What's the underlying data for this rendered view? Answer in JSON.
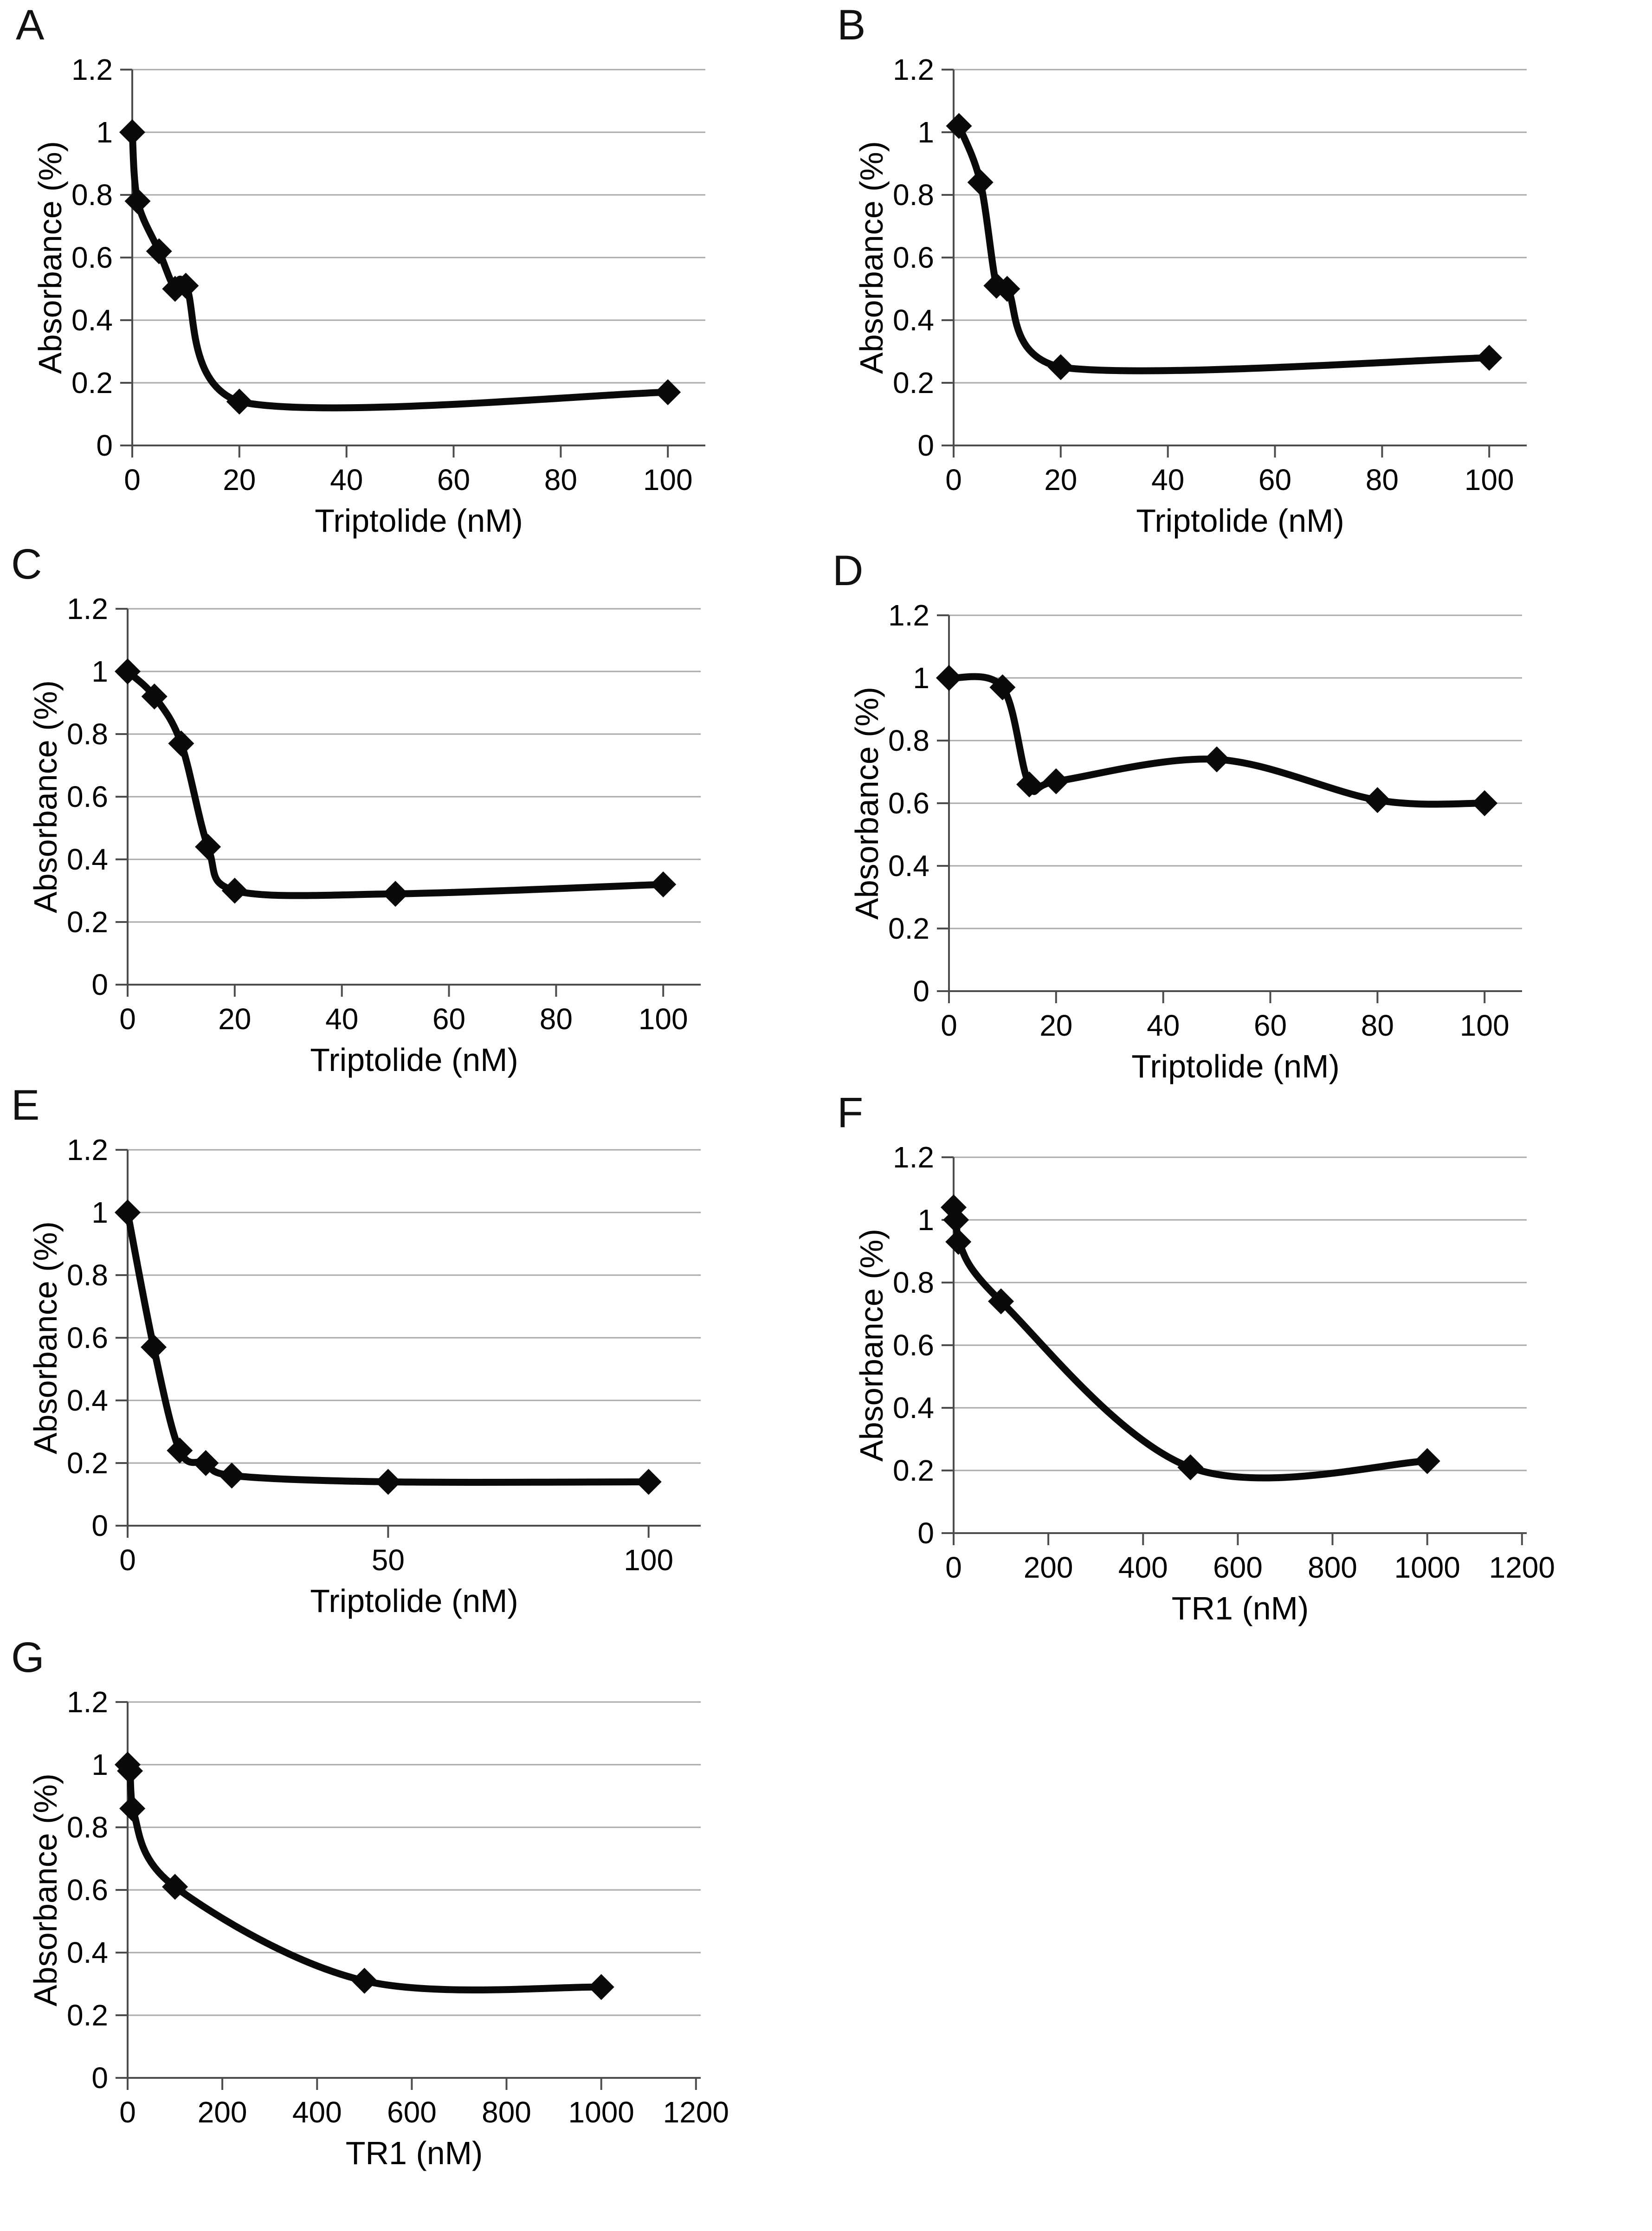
{
  "figure": {
    "background_color": "#ffffff",
    "line_color": "#0a0a0a",
    "marker_color": "#0a0a0a",
    "grid_color": "#a9a9a9",
    "axis_color": "#4d4d4d",
    "text_color": "#000000",
    "marker_shape": "diamond"
  },
  "chart_data": [
    {
      "type": "line",
      "letter": "A",
      "xlabel": "Triptolide (nM)",
      "ylabel": "Absorbance (%)",
      "xlim": [
        0,
        107
      ],
      "ylim": [
        0,
        1.2
      ],
      "grid": true,
      "legend": false,
      "xticks": [
        0,
        20,
        40,
        60,
        80,
        100
      ],
      "xtick_labels": [
        "0",
        "20",
        "40",
        "60",
        "80",
        "100"
      ],
      "yticks": [
        0,
        0.2,
        0.4,
        0.6,
        0.8,
        1,
        1.2
      ],
      "ytick_labels": [
        "0",
        "0.2",
        "0.4",
        "0.6",
        "0.8",
        "1",
        "1.2"
      ],
      "series": [
        {
          "x": [
            0,
            1,
            5,
            8,
            10,
            20,
            100
          ],
          "y": [
            1.0,
            0.78,
            0.62,
            0.5,
            0.51,
            0.14,
            0.17
          ]
        }
      ]
    },
    {
      "type": "line",
      "letter": "B",
      "xlabel": "Triptolide (nM)",
      "ylabel": "Absorbance (%)",
      "xlim": [
        0,
        107
      ],
      "ylim": [
        0,
        1.2
      ],
      "grid": true,
      "legend": false,
      "xticks": [
        0,
        20,
        40,
        60,
        80,
        100
      ],
      "xtick_labels": [
        "0",
        "20",
        "40",
        "60",
        "80",
        "100"
      ],
      "yticks": [
        0,
        0.2,
        0.4,
        0.6,
        0.8,
        1,
        1.2
      ],
      "ytick_labels": [
        "0",
        "0.2",
        "0.4",
        "0.6",
        "0.8",
        "1",
        "1.2"
      ],
      "series": [
        {
          "x": [
            1,
            5,
            8,
            10,
            20,
            100
          ],
          "y": [
            1.02,
            0.84,
            0.51,
            0.5,
            0.25,
            0.28
          ]
        }
      ]
    },
    {
      "type": "line",
      "letter": "C",
      "xlabel": "Triptolide (nM)",
      "ylabel": "Absorbance (%)",
      "xlim": [
        0,
        107
      ],
      "ylim": [
        0,
        1.2
      ],
      "grid": true,
      "legend": false,
      "xticks": [
        0,
        20,
        40,
        60,
        80,
        100
      ],
      "xtick_labels": [
        "0",
        "20",
        "40",
        "60",
        "80",
        "100"
      ],
      "yticks": [
        0,
        0.2,
        0.4,
        0.6,
        0.8,
        1,
        1.2
      ],
      "ytick_labels": [
        "0",
        "0.2",
        "0.4",
        "0.6",
        "0.8",
        "1",
        "1.2"
      ],
      "series": [
        {
          "x": [
            0,
            5,
            10,
            15,
            20,
            50,
            100
          ],
          "y": [
            1.0,
            0.92,
            0.77,
            0.44,
            0.3,
            0.29,
            0.32
          ]
        }
      ]
    },
    {
      "type": "line",
      "letter": "D",
      "xlabel": "Triptolide (nM)",
      "ylabel": "Absorbance (%)",
      "xlim": [
        0,
        107
      ],
      "ylim": [
        0,
        1.2
      ],
      "grid": true,
      "legend": false,
      "xticks": [
        0,
        20,
        40,
        60,
        80,
        100
      ],
      "xtick_labels": [
        "0",
        "20",
        "40",
        "60",
        "80",
        "100"
      ],
      "yticks": [
        0,
        0.2,
        0.4,
        0.6,
        0.8,
        1,
        1.2
      ],
      "ytick_labels": [
        "0",
        "0.2",
        "0.4",
        "0.6",
        "0.8",
        "1",
        "1.2"
      ],
      "series": [
        {
          "x": [
            0,
            10,
            15,
            20,
            50,
            80,
            100
          ],
          "y": [
            1.0,
            0.97,
            0.66,
            0.67,
            0.74,
            0.61,
            0.6
          ]
        }
      ]
    },
    {
      "type": "line",
      "letter": "E",
      "xlabel": "Triptolide (nM)",
      "ylabel": "Absorbance (%)",
      "xlim": [
        0,
        110
      ],
      "ylim": [
        0,
        1.2
      ],
      "grid": true,
      "legend": false,
      "xticks": [
        0,
        50,
        100
      ],
      "xtick_labels": [
        "0",
        "50",
        "100"
      ],
      "yticks": [
        0,
        0.2,
        0.4,
        0.6,
        0.8,
        1,
        1.2
      ],
      "ytick_labels": [
        "0",
        "0.2",
        "0.4",
        "0.6",
        "0.8",
        "1",
        "1.2"
      ],
      "series": [
        {
          "x": [
            0,
            5,
            10,
            15,
            20,
            50,
            100
          ],
          "y": [
            1.0,
            0.57,
            0.24,
            0.2,
            0.16,
            0.14,
            0.14
          ]
        }
      ]
    },
    {
      "type": "line",
      "letter": "F",
      "xlabel": "TR1 (nM)",
      "ylabel": "Absorbance (%)",
      "xlim": [
        0,
        1210
      ],
      "ylim": [
        0,
        1.2
      ],
      "grid": true,
      "legend": false,
      "xticks": [
        0,
        200,
        400,
        600,
        800,
        1000,
        1200
      ],
      "xtick_labels": [
        "0",
        "200",
        "400",
        "600",
        "800",
        "1000",
        "1200"
      ],
      "yticks": [
        0,
        0.2,
        0.4,
        0.6,
        0.8,
        1,
        1.2
      ],
      "ytick_labels": [
        "0",
        "0.2",
        "0.4",
        "0.6",
        "0.8",
        "1",
        "1.2"
      ],
      "series": [
        {
          "x": [
            0,
            5,
            10,
            100,
            500,
            1000
          ],
          "y": [
            1.04,
            1.0,
            0.93,
            0.74,
            0.21,
            0.23
          ]
        }
      ]
    },
    {
      "type": "line",
      "letter": "G",
      "xlabel": "TR1 (nM)",
      "ylabel": "Absorbance (%)",
      "xlim": [
        0,
        1210
      ],
      "ylim": [
        0,
        1.2
      ],
      "grid": true,
      "legend": false,
      "xticks": [
        0,
        200,
        400,
        600,
        800,
        1000,
        1200
      ],
      "xtick_labels": [
        "0",
        "200",
        "400",
        "600",
        "800",
        "1000",
        "1200"
      ],
      "yticks": [
        0,
        0.2,
        0.4,
        0.6,
        0.8,
        1,
        1.2
      ],
      "ytick_labels": [
        "0",
        "0.2",
        "0.4",
        "0.6",
        "0.8",
        "1",
        "1.2"
      ],
      "series": [
        {
          "x": [
            0,
            5,
            10,
            100,
            500,
            1000
          ],
          "y": [
            1.0,
            0.98,
            0.86,
            0.61,
            0.31,
            0.29
          ]
        }
      ]
    }
  ]
}
